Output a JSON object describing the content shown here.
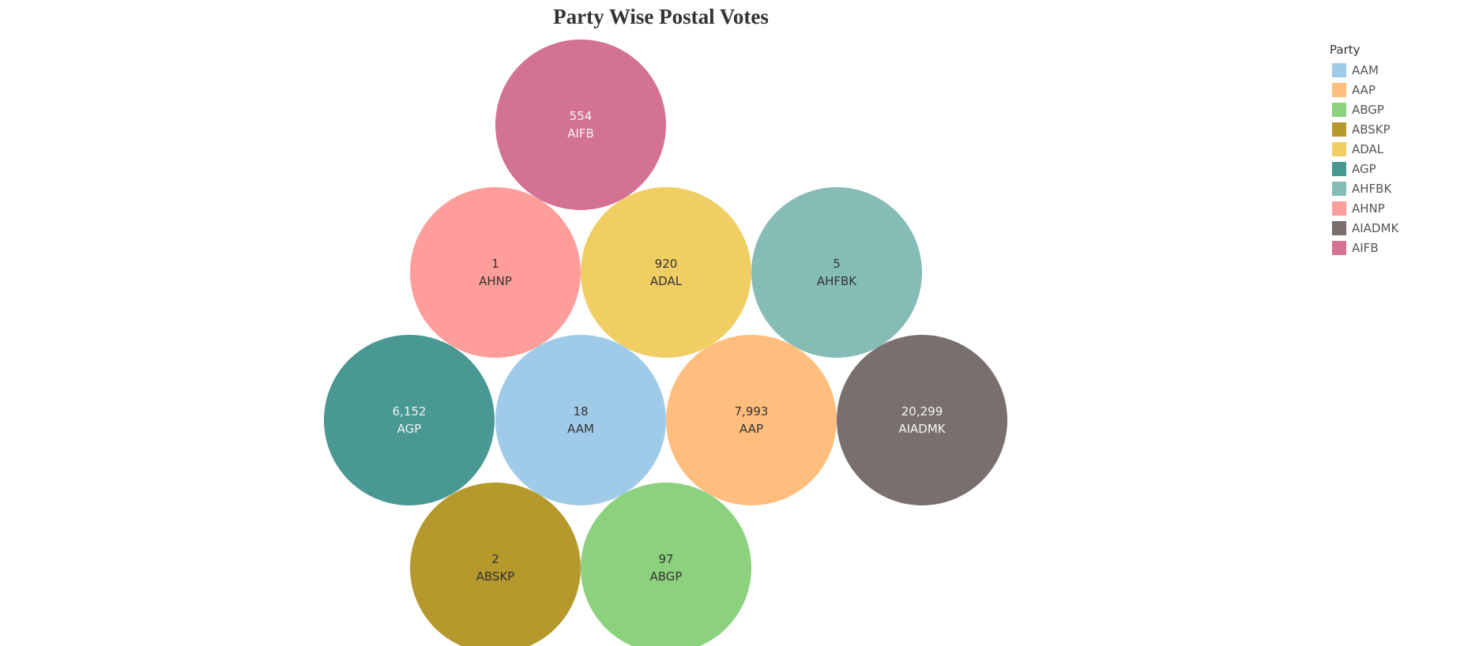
{
  "chart_data": {
    "type": "bubble",
    "title": "Party Wise Postal Votes",
    "legend": {
      "title": "Party",
      "position": "top-right",
      "items": [
        {
          "label": "AAM",
          "color": "#a0cbe8"
        },
        {
          "label": "AAP",
          "color": "#ffbe7d"
        },
        {
          "label": "ABGP",
          "color": "#8cd17d"
        },
        {
          "label": "ABSKP",
          "color": "#b6992d"
        },
        {
          "label": "ADAL",
          "color": "#f1ce63"
        },
        {
          "label": "AGP",
          "color": "#499894"
        },
        {
          "label": "AHFBK",
          "color": "#86bcb6"
        },
        {
          "label": "AHNP",
          "color": "#ff9d9a"
        },
        {
          "label": "AIADMK",
          "color": "#79706e"
        },
        {
          "label": "AIFB",
          "color": "#d37295"
        }
      ]
    },
    "bubbles": [
      {
        "party": "AIFB",
        "value_label": "554",
        "value": 554,
        "color": "#d37295",
        "text_color": "#f3f3f3"
      },
      {
        "party": "AHNP",
        "value_label": "1",
        "value": 1,
        "color": "#ff9d9a",
        "text_color": "#333333"
      },
      {
        "party": "ADAL",
        "value_label": "920",
        "value": 920,
        "color": "#f1ce63",
        "text_color": "#333333"
      },
      {
        "party": "AHFBK",
        "value_label": "5",
        "value": 5,
        "color": "#86bcb6",
        "text_color": "#333333"
      },
      {
        "party": "AGP",
        "value_label": "6,152",
        "value": 6152,
        "color": "#499894",
        "text_color": "#f3f3f3"
      },
      {
        "party": "AAM",
        "value_label": "18",
        "value": 18,
        "color": "#a0cbe8",
        "text_color": "#333333"
      },
      {
        "party": "AAP",
        "value_label": "7,993",
        "value": 7993,
        "color": "#ffbe7d",
        "text_color": "#333333"
      },
      {
        "party": "AIADMK",
        "value_label": "20,299",
        "value": 20299,
        "color": "#79706e",
        "text_color": "#f3f3f3"
      },
      {
        "party": "ABSKP",
        "value_label": "2",
        "value": 2,
        "color": "#b6992d",
        "text_color": "#333333"
      },
      {
        "party": "ABGP",
        "value_label": "97",
        "value": 97,
        "color": "#8cd17d",
        "text_color": "#333333"
      }
    ]
  }
}
